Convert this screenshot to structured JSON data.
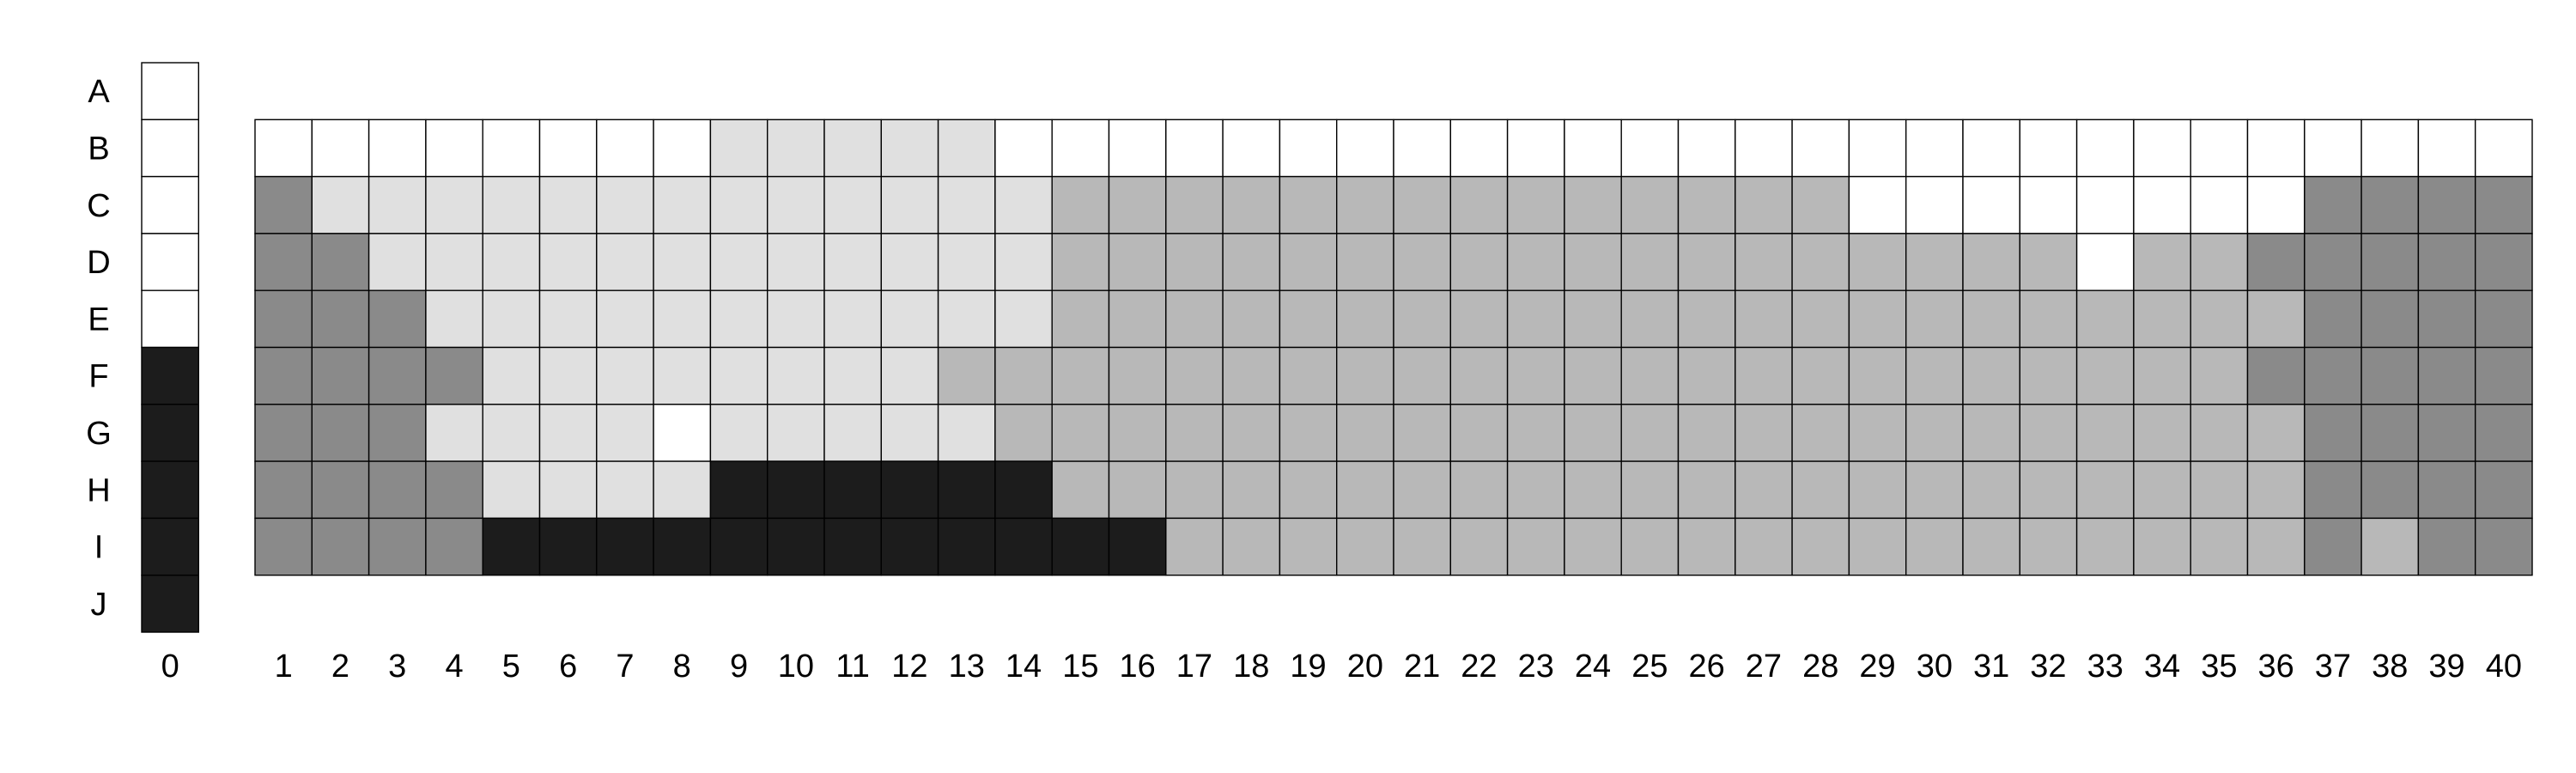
{
  "row_labels": [
    "A",
    "B",
    "C",
    "D",
    "E",
    "F",
    "G",
    "H",
    "I",
    "J"
  ],
  "column_labels": [
    "0",
    "1",
    "2",
    "3",
    "4",
    "5",
    "6",
    "7",
    "8",
    "9",
    "10",
    "11",
    "12",
    "13",
    "14",
    "15",
    "16",
    "17",
    "18",
    "19",
    "20",
    "21",
    "22",
    "23",
    "24",
    "25",
    "26",
    "27",
    "28",
    "29",
    "30",
    "31",
    "32",
    "33",
    "34",
    "35",
    "36",
    "37",
    "38",
    "39",
    "40"
  ],
  "colors": {
    "W": "#ffffff",
    "L": "#e0e0e0",
    "G": "#b8b8b8",
    "D": "#8a8a8a",
    "K": "#1c1c1c"
  },
  "column_zero": {
    "rows": [
      "A",
      "B",
      "C",
      "D",
      "E",
      "F",
      "G",
      "H",
      "I",
      "J"
    ],
    "shades": "WWWWWKKKKK"
  },
  "grid": {
    "columns_from": 1,
    "columns_to": 40,
    "rows": [
      "B",
      "C",
      "D",
      "E",
      "F",
      "G",
      "H",
      "I"
    ],
    "shades": [
      "WWWWWWWWLLLLLWWWWWWWWWWWWWWWWWWWWWWWWWWW",
      "DLLLLLLLLLLLLLGGGGGGGGGGGGGGWWWWWWWWDDDD",
      "DDLLLLLLLLLLLLGGGGGGGGGGGGGGGGGGWGGDDDDD",
      "DDDLLLLLLLLLLLGGGGGGGGGGGGGGGGGGGGGGDDDD",
      "DDDDLLLLLLLLGGGGGGGGGGGGGGGGGGGGGGGDDDDD",
      "DDDLLLLWLLLLLGGGGGGGGGGGGGGGGGGGGGGGDDDD",
      "DDDDLLLLKKKKKKGGGGGGGGGGGGGGGGGGGGGGDDDD",
      "DDDDKKKKKKKKKKKKGGGGGGGGGGGGGGGGGGGGDGDD"
    ]
  }
}
